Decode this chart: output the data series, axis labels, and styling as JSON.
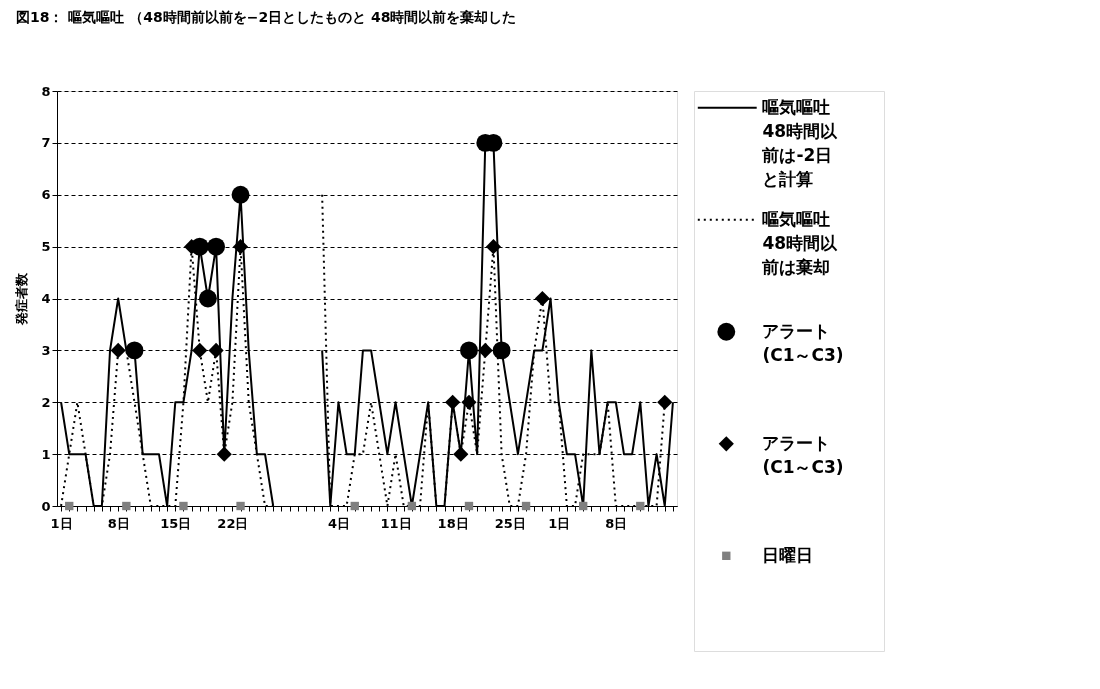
{
  "chart_data": {
    "type": "line",
    "title": "図18： 嘔気嘔吐 （48時間前以前を−2日としたものと 48時間以前を棄却した",
    "ylabel": "発症者数",
    "categories": [
      "1日",
      null,
      null,
      null,
      null,
      null,
      null,
      "8日",
      null,
      null,
      null,
      null,
      null,
      null,
      "15日",
      null,
      null,
      null,
      null,
      null,
      null,
      "22日",
      null,
      null,
      null,
      null,
      null,
      null,
      null,
      null,
      null,
      null,
      null,
      null,
      "4日",
      null,
      null,
      null,
      null,
      null,
      null,
      "11日",
      null,
      null,
      null,
      null,
      null,
      null,
      "18日",
      null,
      null,
      null,
      null,
      null,
      null,
      "25日",
      null,
      null,
      null,
      null,
      null,
      "1日",
      null,
      null,
      null,
      null,
      null,
      null,
      "8日",
      null,
      null,
      null,
      null,
      null,
      null,
      null
    ],
    "series": [
      {
        "name": "嘔気嘔吐48時間以前は-2日と計算",
        "line_style": "solid",
        "color": "#000000",
        "values": [
          2,
          1,
          1,
          1,
          0,
          0,
          3,
          4,
          3,
          3,
          1,
          1,
          1,
          0,
          2,
          2,
          3,
          5,
          4,
          5,
          1,
          4,
          6,
          3,
          1,
          1,
          0,
          null,
          null,
          null,
          null,
          null,
          3,
          0,
          2,
          1,
          1,
          3,
          3,
          2,
          1,
          2,
          1,
          0,
          1,
          2,
          0,
          0,
          2,
          1,
          3,
          1,
          7,
          7,
          3,
          2,
          1,
          2,
          3,
          3,
          4,
          2,
          1,
          1,
          0,
          3,
          1,
          2,
          2,
          1,
          1,
          2,
          0,
          1,
          0,
          2
        ]
      },
      {
        "name": "嘔気嘔吐48時間以前は棄却",
        "line_style": "dotted",
        "color": "#000000",
        "values": [
          0,
          1,
          2,
          1,
          0,
          0,
          1,
          3,
          3,
          2,
          1,
          0,
          0,
          0,
          0,
          2,
          5,
          3,
          2,
          3,
          1,
          2,
          5,
          2,
          1,
          0,
          0,
          null,
          null,
          null,
          null,
          null,
          6,
          0,
          0,
          0,
          1,
          1,
          2,
          1,
          0,
          1,
          0,
          0,
          0,
          2,
          0,
          0,
          2,
          1,
          2,
          1,
          3,
          5,
          1,
          0,
          0,
          1,
          3,
          4,
          2,
          2,
          0,
          0,
          1,
          1,
          1,
          2,
          0,
          0,
          0,
          0,
          0,
          0,
          2,
          null
        ]
      },
      {
        "name": "アラート(C1～C3)",
        "type": "scatter",
        "marker": "circle",
        "color": "#000000",
        "values": [
          null,
          null,
          null,
          null,
          null,
          null,
          null,
          null,
          null,
          3,
          null,
          null,
          null,
          null,
          null,
          null,
          null,
          5,
          4,
          5,
          null,
          null,
          6,
          null,
          null,
          null,
          null,
          null,
          null,
          null,
          null,
          null,
          null,
          null,
          null,
          null,
          null,
          null,
          null,
          null,
          null,
          null,
          null,
          null,
          null,
          null,
          null,
          null,
          null,
          null,
          3,
          null,
          7,
          7,
          3,
          null,
          null,
          null,
          null,
          null,
          null,
          null,
          null,
          null,
          null,
          null,
          null,
          null,
          null,
          null,
          null,
          null,
          null,
          null,
          null,
          null
        ]
      },
      {
        "name": "アラート(C1～C3)",
        "type": "scatter",
        "marker": "diamond",
        "color": "#000000",
        "values": [
          null,
          null,
          null,
          null,
          null,
          null,
          null,
          3,
          null,
          null,
          null,
          null,
          null,
          null,
          null,
          null,
          5,
          3,
          null,
          3,
          1,
          null,
          5,
          null,
          null,
          null,
          null,
          null,
          null,
          null,
          null,
          null,
          null,
          null,
          null,
          null,
          null,
          null,
          null,
          null,
          null,
          null,
          null,
          null,
          null,
          null,
          null,
          null,
          2,
          1,
          2,
          null,
          3,
          5,
          null,
          null,
          null,
          null,
          null,
          4,
          null,
          null,
          null,
          null,
          null,
          null,
          null,
          null,
          null,
          null,
          null,
          null,
          null,
          null,
          2,
          null
        ]
      },
      {
        "name": "日曜日",
        "type": "scatter",
        "marker": "square",
        "color": "#808080",
        "values": [
          null,
          0,
          null,
          null,
          null,
          null,
          null,
          null,
          0,
          null,
          null,
          null,
          null,
          null,
          null,
          0,
          null,
          null,
          null,
          null,
          null,
          null,
          0,
          null,
          null,
          null,
          null,
          null,
          null,
          null,
          null,
          null,
          null,
          null,
          null,
          null,
          0,
          null,
          null,
          null,
          null,
          null,
          null,
          0,
          null,
          null,
          null,
          null,
          null,
          null,
          0,
          null,
          null,
          null,
          null,
          null,
          null,
          0,
          null,
          null,
          null,
          null,
          null,
          null,
          0,
          null,
          null,
          null,
          null,
          null,
          null,
          0,
          null,
          null,
          null,
          null
        ]
      }
    ],
    "ylim": [
      0,
      8
    ],
    "yticks": [
      0,
      1,
      2,
      3,
      4,
      5,
      6,
      7,
      8
    ],
    "grid": "y",
    "legend": "right"
  }
}
